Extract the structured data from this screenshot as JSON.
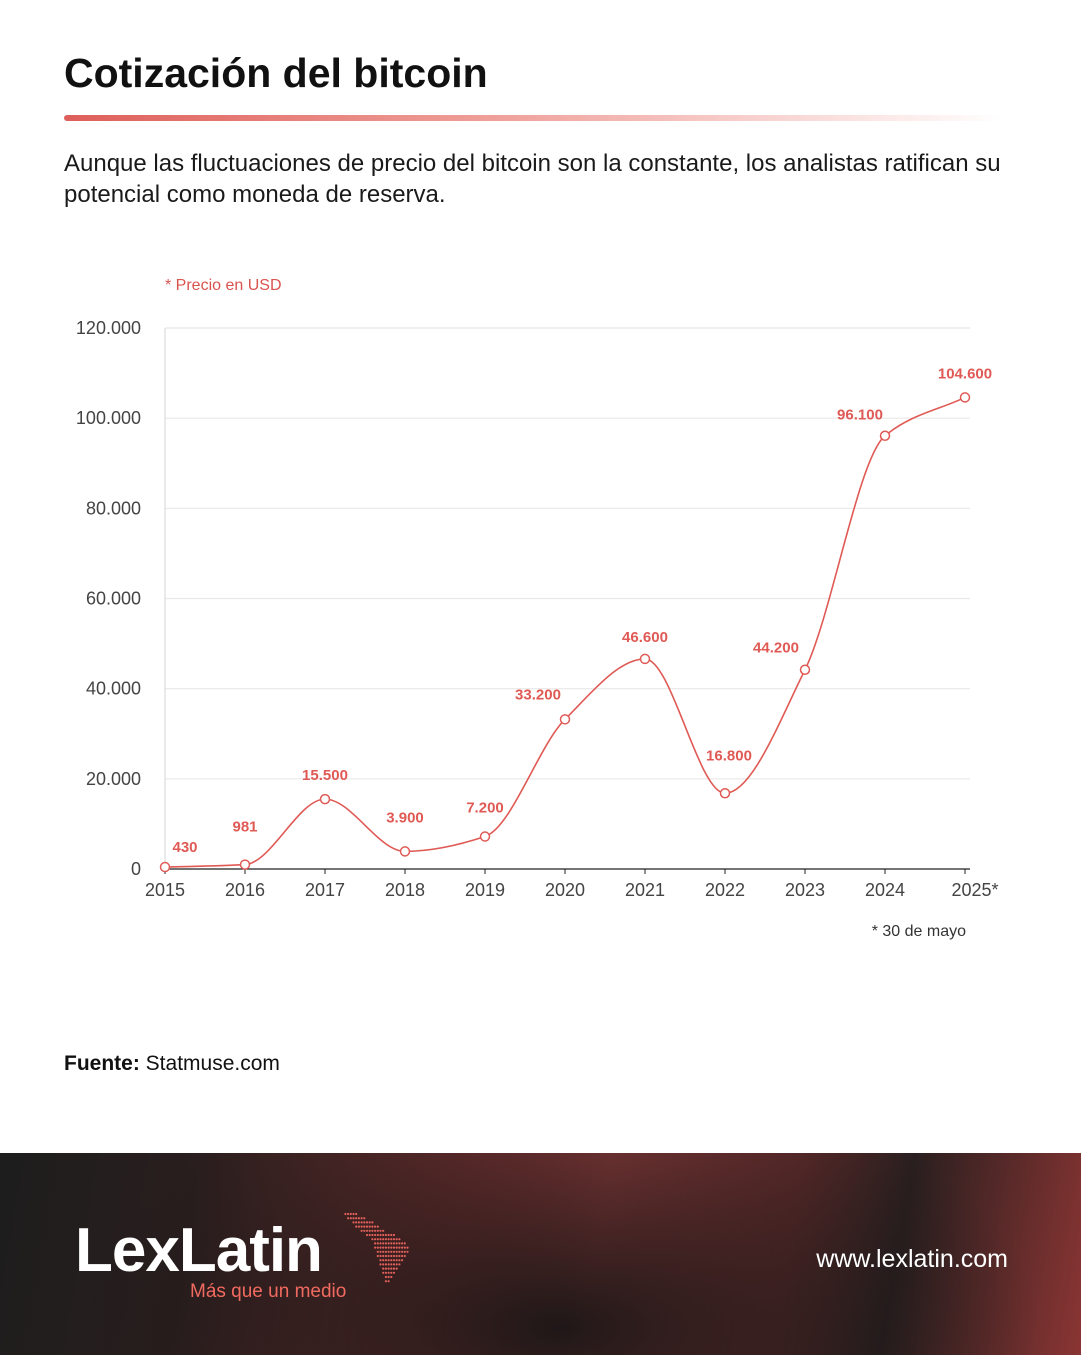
{
  "header": {
    "title": "Cotización del bitcoin",
    "subtitle": "Aunque las fluctuaciones de precio del bitcoin son la constante, los analistas ratifican su potencial como moneda de reserva."
  },
  "notes": {
    "unit": "* Precio en USD",
    "date": "* 30 de mayo"
  },
  "source": {
    "label": "Fuente:",
    "value": "Statmuse.com"
  },
  "footer": {
    "logo_text": "LexLatin",
    "tagline": "Más que un medio",
    "website": "www.lexlatin.com"
  },
  "colors": {
    "accent": "#e05a55",
    "grid": "#e8e8e8",
    "axis_text": "#444444"
  },
  "chart_data": {
    "type": "line",
    "categories": [
      "2015",
      "2016",
      "2017",
      "2018",
      "2019",
      "2020",
      "2021",
      "2022",
      "2023",
      "2024",
      "2025*"
    ],
    "series": [
      {
        "values": [
          430,
          981,
          15500,
          3900,
          7200,
          33200,
          46600,
          16800,
          44200,
          96100,
          104600
        ],
        "labels": [
          "430",
          "981",
          "15.500",
          "3.900",
          "7.200",
          "33.200",
          "46.600",
          "16.800",
          "44.200",
          "96.100",
          "104.600"
        ]
      }
    ],
    "y_ticks": [
      0,
      20000,
      40000,
      60000,
      80000,
      100000,
      120000
    ],
    "y_tick_labels": [
      "0",
      "20.000",
      "40.000",
      "60.000",
      "80.000",
      "100.000",
      "120.000"
    ],
    "ylim": [
      0,
      120000
    ],
    "grid": true,
    "smooth": true
  }
}
